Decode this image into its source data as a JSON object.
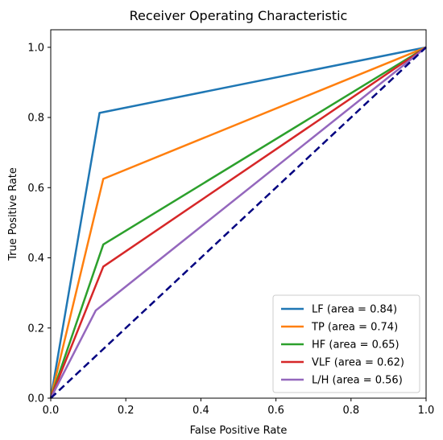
{
  "chart_data": {
    "type": "line",
    "title": "Receiver Operating Characteristic",
    "xlabel": "False Positive Rate",
    "ylabel": "True Positive Rate",
    "xlim": [
      0.0,
      1.0
    ],
    "ylim": [
      0.0,
      1.05
    ],
    "xticks": [
      "0.0",
      "0.2",
      "0.4",
      "0.6",
      "0.8",
      "1.0"
    ],
    "yticks": [
      "0.0",
      "0.2",
      "0.4",
      "0.6",
      "0.8",
      "1.0"
    ],
    "grid": false,
    "legend_position": "lower-right",
    "series": [
      {
        "name": "LF (area = 0.84)",
        "color": "#1f77b4",
        "x": [
          0.0,
          0.13,
          1.0
        ],
        "y": [
          0.0,
          0.813,
          1.0
        ]
      },
      {
        "name": "TP (area = 0.74)",
        "color": "#ff7f0e",
        "x": [
          0.0,
          0.14,
          1.0
        ],
        "y": [
          0.0,
          0.625,
          1.0
        ]
      },
      {
        "name": "HF (area = 0.65)",
        "color": "#2ca02c",
        "x": [
          0.0,
          0.14,
          1.0
        ],
        "y": [
          0.0,
          0.438,
          1.0
        ]
      },
      {
        "name": "VLF (area = 0.62)",
        "color": "#d62728",
        "x": [
          0.0,
          0.14,
          1.0
        ],
        "y": [
          0.0,
          0.375,
          1.0
        ]
      },
      {
        "name": "L/H (area = 0.56)",
        "color": "#9467bd",
        "x": [
          0.0,
          0.12,
          1.0
        ],
        "y": [
          0.0,
          0.25,
          1.0
        ]
      }
    ],
    "reference_line": {
      "color": "#000080",
      "style": "dashed",
      "x": [
        0.0,
        1.0
      ],
      "y": [
        0.0,
        1.0
      ]
    }
  }
}
